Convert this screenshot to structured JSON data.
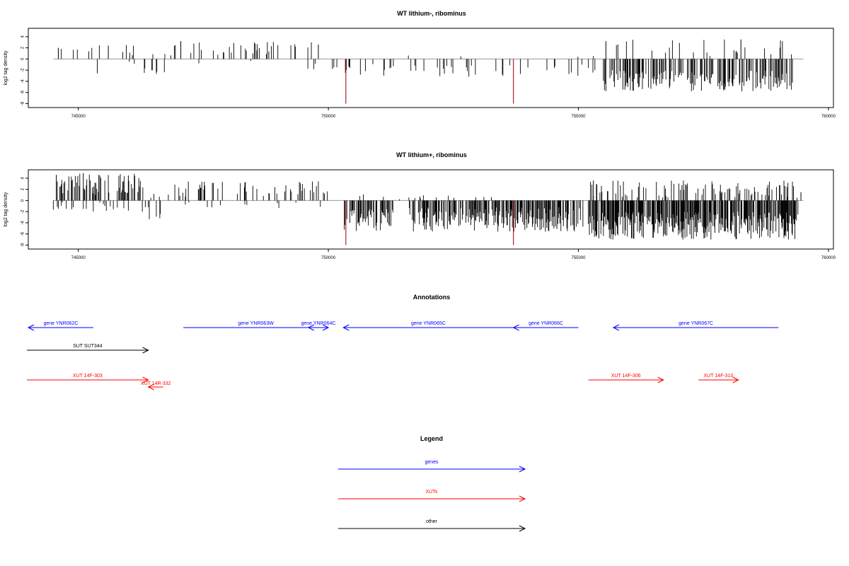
{
  "chart_data": [
    {
      "type": "bar",
      "title": "WT lithium-, ribominus",
      "ylabel": "log2 tag density",
      "xlim": [
        744000,
        760100
      ],
      "ylim": [
        -8.2,
        5
      ],
      "x_ticks": [
        745000,
        750000,
        755000,
        760000
      ],
      "x_tick_labels": [
        "745000",
        "750000",
        "755000",
        "760000"
      ],
      "y_ticks": [
        4,
        2,
        0,
        -2,
        -4,
        -6,
        -8
      ],
      "y_tick_labels": [
        "4",
        "2",
        "0",
        "-2",
        "-4",
        "-6",
        "-8"
      ],
      "baseline": {
        "from": 744500,
        "to": 759500
      },
      "bar_color": "#000000",
      "highlight_color": "#b22222",
      "segments": [
        {
          "from": 744500,
          "to": 747000,
          "pos_density": 0.07,
          "pos_min": 0.5,
          "pos_max": 2.5,
          "neg_density": 0.01,
          "neg_min": 0.3,
          "neg_max": 2.8
        },
        {
          "from": 746300,
          "to": 746800,
          "pos_density": 0.01,
          "pos_min": 0.3,
          "pos_max": 1.0,
          "neg_density": 0.08,
          "neg_min": 1.0,
          "neg_max": 2.8
        },
        {
          "from": 746800,
          "to": 749700,
          "pos_density": 0.09,
          "pos_min": 0.5,
          "pos_max": 3.2,
          "neg_density": 0.01,
          "neg_min": 0.2,
          "neg_max": 2.0
        },
        {
          "from": 749700,
          "to": 755500,
          "pos_density": 0.01,
          "pos_min": 0.3,
          "pos_max": 1.0,
          "neg_density": 0.09,
          "neg_min": 0.8,
          "neg_max": 3.2
        },
        {
          "from": 755500,
          "to": 759300,
          "pos_density": 0.05,
          "pos_min": 0.4,
          "pos_max": 3.5,
          "neg_density": 0.4,
          "neg_min": 2.0,
          "neg_max": 5.8
        }
      ],
      "spikes": [
        {
          "x": 744600,
          "y": 2.0
        },
        {
          "x": 745600,
          "y": 2.4
        },
        {
          "x": 747050,
          "y": 3.2
        },
        {
          "x": 749800,
          "y": 2.6
        },
        {
          "x": 755550,
          "y": 3.2
        },
        {
          "x": 758250,
          "y": 3.5
        },
        {
          "x": 750350,
          "y": -8.0,
          "highlight": true
        },
        {
          "x": 753700,
          "y": -8.0,
          "highlight": true
        }
      ]
    },
    {
      "type": "bar",
      "title": "WT lithium+, ribominus",
      "ylabel": "log2 tag density",
      "xlim": [
        744000,
        760100
      ],
      "ylim": [
        -8.2,
        5
      ],
      "x_ticks": [
        745000,
        750000,
        755000,
        760000
      ],
      "x_tick_labels": [
        "745000",
        "750000",
        "755000",
        "760000"
      ],
      "y_ticks": [
        4,
        2,
        0,
        -2,
        -4,
        -6,
        -8
      ],
      "y_tick_labels": [
        "4",
        "2",
        "0",
        "-2",
        "-4",
        "-6",
        "-8"
      ],
      "baseline": {
        "from": 744500,
        "to": 759500
      },
      "bar_color": "#000000",
      "highlight_color": "#b22222",
      "segments": [
        {
          "from": 744500,
          "to": 746300,
          "pos_density": 0.35,
          "pos_min": 1.0,
          "pos_max": 4.8,
          "neg_density": 0.12,
          "neg_min": 0.3,
          "neg_max": 2.0
        },
        {
          "from": 746300,
          "to": 746800,
          "pos_density": 0.05,
          "pos_min": 0.3,
          "pos_max": 1.2,
          "neg_density": 0.15,
          "neg_min": 1.0,
          "neg_max": 3.5
        },
        {
          "from": 746800,
          "to": 750000,
          "pos_density": 0.12,
          "pos_min": 0.5,
          "pos_max": 3.6,
          "neg_density": 0.05,
          "neg_min": 0.3,
          "neg_max": 1.5
        },
        {
          "from": 750300,
          "to": 751300,
          "pos_density": 0.03,
          "pos_min": 0.3,
          "pos_max": 1.2,
          "neg_density": 0.5,
          "neg_min": 1.5,
          "neg_max": 5.5
        },
        {
          "from": 751300,
          "to": 751600,
          "pos_density": 0.02,
          "pos_min": 0.2,
          "pos_max": 0.8,
          "neg_density": 0.02,
          "neg_min": 0.2,
          "neg_max": 1.0
        },
        {
          "from": 751600,
          "to": 755100,
          "pos_density": 0.03,
          "pos_min": 0.3,
          "pos_max": 1.5,
          "neg_density": 0.55,
          "neg_min": 1.2,
          "neg_max": 5.6
        },
        {
          "from": 755200,
          "to": 759400,
          "pos_density": 0.2,
          "pos_min": 0.5,
          "pos_max": 3.6,
          "neg_density": 0.7,
          "neg_min": 2.0,
          "neg_max": 7.0
        }
      ],
      "spikes": [
        {
          "x": 744560,
          "y": 4.6
        },
        {
          "x": 745100,
          "y": 4.9
        },
        {
          "x": 746000,
          "y": 4.5
        },
        {
          "x": 755300,
          "y": 3.6
        },
        {
          "x": 759450,
          "y": 1.5
        },
        {
          "x": 750350,
          "y": -8.0,
          "highlight": true
        },
        {
          "x": 753700,
          "y": -8.0,
          "highlight": true
        }
      ]
    }
  ],
  "annotations": {
    "title": "Annotations",
    "features": [
      {
        "label": "gene YNR062C",
        "start": 744000,
        "end": 745300,
        "direction": "left",
        "kind": "gene"
      },
      {
        "label": "gene YNR063W",
        "start": 747100,
        "end": 750000,
        "direction": "right",
        "kind": "gene"
      },
      {
        "label": "gene YNR064C",
        "start": 749600,
        "end": 750000,
        "direction": "left",
        "kind": "gene"
      },
      {
        "label": "gene YNR065C",
        "start": 750300,
        "end": 753700,
        "direction": "left",
        "kind": "gene"
      },
      {
        "label": "gene YNR066C",
        "start": 753700,
        "end": 755000,
        "direction": "left",
        "kind": "gene"
      },
      {
        "label": "gene YNR067C",
        "start": 755700,
        "end": 759000,
        "direction": "left",
        "kind": "gene"
      },
      {
        "label": "SUT SUT344",
        "start": 743500,
        "end": 746400,
        "direction": "right",
        "kind": "other"
      },
      {
        "label": "XUT 14F-303",
        "start": 743500,
        "end": 746400,
        "direction": "right",
        "kind": "xut"
      },
      {
        "label": "XUT 14R-332",
        "start": 746400,
        "end": 746700,
        "direction": "left",
        "kind": "xut"
      },
      {
        "label": "XUT 14F-306",
        "start": 755200,
        "end": 756700,
        "direction": "right",
        "kind": "xut"
      },
      {
        "label": "XUT 14F-310",
        "start": 757400,
        "end": 758200,
        "direction": "right",
        "kind": "xut"
      }
    ]
  },
  "legend": {
    "title": "Legend",
    "items": [
      {
        "label": "genes",
        "kind": "gene"
      },
      {
        "label": "XUTs",
        "kind": "xut"
      },
      {
        "label": "other",
        "kind": "other"
      }
    ]
  },
  "colors": {
    "gene": "#0000ff",
    "xut": "#ff0000",
    "other": "#000000",
    "axis": "#000000",
    "baseline": "#9a9a9a"
  }
}
